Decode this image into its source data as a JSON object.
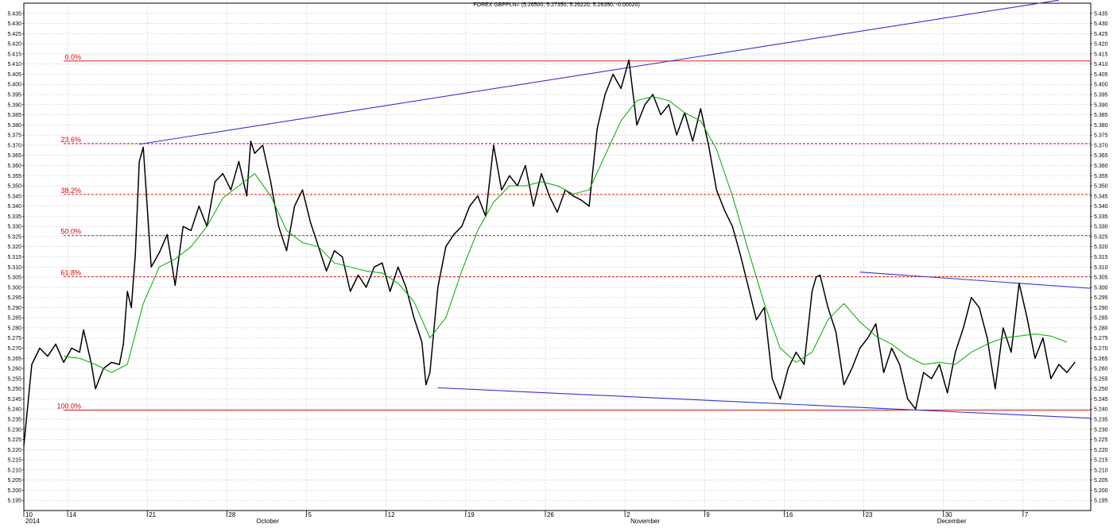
{
  "chart_data": {
    "type": "line",
    "title": "FOREX GBPPLN= (5.26500, 5.27350, 5.26220, 5.26350, -0.00020)",
    "xlabel": "",
    "ylabel": "",
    "ylim": [
      5.19,
      5.44
    ],
    "y_tick_step": 0.005,
    "grid": true,
    "x_date_ticks": [
      {
        "label": "10",
        "x": 0
      },
      {
        "label": "14",
        "x": 11
      },
      {
        "label": "21",
        "x": 31
      },
      {
        "label": "28",
        "x": 51
      },
      {
        "label": "5",
        "x": 71
      },
      {
        "label": "12",
        "x": 91
      },
      {
        "label": "19",
        "x": 111
      },
      {
        "label": "26",
        "x": 131
      },
      {
        "label": "2",
        "x": 151
      },
      {
        "label": "9",
        "x": 171
      },
      {
        "label": "16",
        "x": 191
      },
      {
        "label": "23",
        "x": 211
      },
      {
        "label": "30",
        "x": 231
      },
      {
        "label": "7",
        "x": 251
      }
    ],
    "x_month_labels": [
      {
        "label": "2014",
        "x": 0
      },
      {
        "label": "October",
        "x": 58
      },
      {
        "label": "November",
        "x": 152
      },
      {
        "label": "December",
        "x": 229
      }
    ],
    "x_range": [
      0,
      268
    ],
    "series": [
      {
        "role": "price",
        "color": "#000000",
        "x": [
          0,
          2,
          4,
          6,
          8,
          10,
          12,
          14,
          15,
          17,
          18,
          20,
          22,
          24,
          25,
          26,
          27,
          28,
          29,
          30,
          32,
          34,
          36,
          38,
          40,
          42,
          44,
          46,
          48,
          50,
          52,
          54,
          56,
          57,
          58,
          60,
          62,
          64,
          66,
          68,
          70,
          72,
          74,
          76,
          78,
          80,
          82,
          84,
          86,
          88,
          90,
          92,
          94,
          96,
          98,
          99,
          100,
          101,
          102,
          104,
          106,
          108,
          110,
          112,
          114,
          116,
          118,
          120,
          122,
          124,
          126,
          128,
          130,
          132,
          134,
          136,
          138,
          140,
          142,
          144,
          146,
          148,
          150,
          152,
          154,
          156,
          158,
          160,
          162,
          164,
          166,
          168,
          170,
          172,
          174,
          176,
          178,
          180,
          182,
          184,
          186,
          188,
          190,
          192,
          194,
          196,
          198,
          199,
          200,
          202,
          204,
          206,
          208,
          210,
          212,
          214,
          216,
          218,
          220,
          222,
          224,
          226,
          228,
          230,
          232,
          234,
          236,
          238,
          240,
          242,
          244,
          246,
          248,
          250,
          252,
          254,
          256,
          258,
          260,
          262,
          264
        ],
        "y": [
          5.222,
          5.262,
          5.27,
          5.266,
          5.272,
          5.263,
          5.27,
          5.268,
          5.279,
          5.262,
          5.25,
          5.26,
          5.263,
          5.262,
          5.272,
          5.298,
          5.29,
          5.316,
          5.362,
          5.369,
          5.31,
          5.317,
          5.326,
          5.301,
          5.33,
          5.328,
          5.34,
          5.33,
          5.352,
          5.356,
          5.348,
          5.362,
          5.345,
          5.372,
          5.366,
          5.37,
          5.352,
          5.33,
          5.318,
          5.34,
          5.348,
          5.332,
          5.32,
          5.308,
          5.318,
          5.315,
          5.298,
          5.306,
          5.3,
          5.31,
          5.312,
          5.298,
          5.31,
          5.3,
          5.285,
          5.279,
          5.273,
          5.252,
          5.258,
          5.3,
          5.32,
          5.326,
          5.33,
          5.34,
          5.345,
          5.335,
          5.37,
          5.348,
          5.355,
          5.35,
          5.36,
          5.34,
          5.356,
          5.345,
          5.337,
          5.348,
          5.345,
          5.343,
          5.34,
          5.378,
          5.395,
          5.405,
          5.398,
          5.412,
          5.38,
          5.39,
          5.395,
          5.385,
          5.39,
          5.375,
          5.386,
          5.372,
          5.388,
          5.37,
          5.348,
          5.338,
          5.33,
          5.316,
          5.3,
          5.284,
          5.29,
          5.255,
          5.245,
          5.26,
          5.268,
          5.262,
          5.298,
          5.305,
          5.306,
          5.29,
          5.278,
          5.252,
          5.26,
          5.27,
          5.275,
          5.282,
          5.258,
          5.27,
          5.262,
          5.245,
          5.24,
          5.258,
          5.255,
          5.262,
          5.248,
          5.268,
          5.28,
          5.295,
          5.29,
          5.275,
          5.25,
          5.28,
          5.268,
          5.302,
          5.285,
          5.265,
          5.275,
          5.255,
          5.262,
          5.258,
          5.263
        ]
      },
      {
        "role": "moving-average",
        "color": "#00aa00",
        "x": [
          10,
          14,
          18,
          22,
          26,
          30,
          34,
          38,
          42,
          46,
          50,
          54,
          58,
          62,
          66,
          70,
          74,
          78,
          82,
          86,
          90,
          94,
          98,
          102,
          106,
          110,
          114,
          118,
          122,
          126,
          130,
          134,
          138,
          142,
          146,
          150,
          154,
          158,
          162,
          166,
          170,
          174,
          178,
          182,
          186,
          190,
          194,
          198,
          202,
          206,
          210,
          214,
          218,
          222,
          226,
          230,
          234,
          238,
          242,
          246,
          250,
          254,
          258,
          262
        ],
        "y": [
          5.266,
          5.265,
          5.262,
          5.258,
          5.262,
          5.292,
          5.31,
          5.314,
          5.32,
          5.33,
          5.344,
          5.35,
          5.356,
          5.345,
          5.328,
          5.322,
          5.32,
          5.312,
          5.31,
          5.308,
          5.307,
          5.302,
          5.293,
          5.275,
          5.285,
          5.308,
          5.328,
          5.342,
          5.35,
          5.35,
          5.352,
          5.35,
          5.346,
          5.348,
          5.365,
          5.382,
          5.392,
          5.394,
          5.392,
          5.386,
          5.382,
          5.368,
          5.345,
          5.318,
          5.292,
          5.27,
          5.263,
          5.268,
          5.284,
          5.292,
          5.283,
          5.276,
          5.272,
          5.266,
          5.262,
          5.263,
          5.262,
          5.268,
          5.272,
          5.275,
          5.276,
          5.277,
          5.276,
          5.273
        ]
      }
    ],
    "fibonacci_levels": [
      {
        "label": "0.0%",
        "y": 5.4115
      },
      {
        "label": "23.6%",
        "y": 5.3708
      },
      {
        "label": "38.2%",
        "y": 5.3458
      },
      {
        "label": "50.0%",
        "y": 5.3255
      },
      {
        "label": "61.8%",
        "y": 5.3052
      },
      {
        "label": "100.0%",
        "y": 5.2395
      }
    ],
    "trendlines": [
      {
        "color": "#3333cc",
        "x1": 29,
        "y1": 5.3705,
        "x2": 260,
        "y2": 5.4415
      },
      {
        "color": "#3333cc",
        "x1": 104,
        "y1": 5.2505,
        "x2": 268,
        "y2": 5.2355
      },
      {
        "color": "#3333cc",
        "x1": 210,
        "y1": 5.3075,
        "x2": 268,
        "y2": 5.2995
      }
    ],
    "colors": {
      "price": "#000000",
      "moving_average": "#00aa00",
      "fibonacci": "#e00000",
      "trendline": "#3333cc",
      "grid": "#c8c8c8"
    }
  }
}
